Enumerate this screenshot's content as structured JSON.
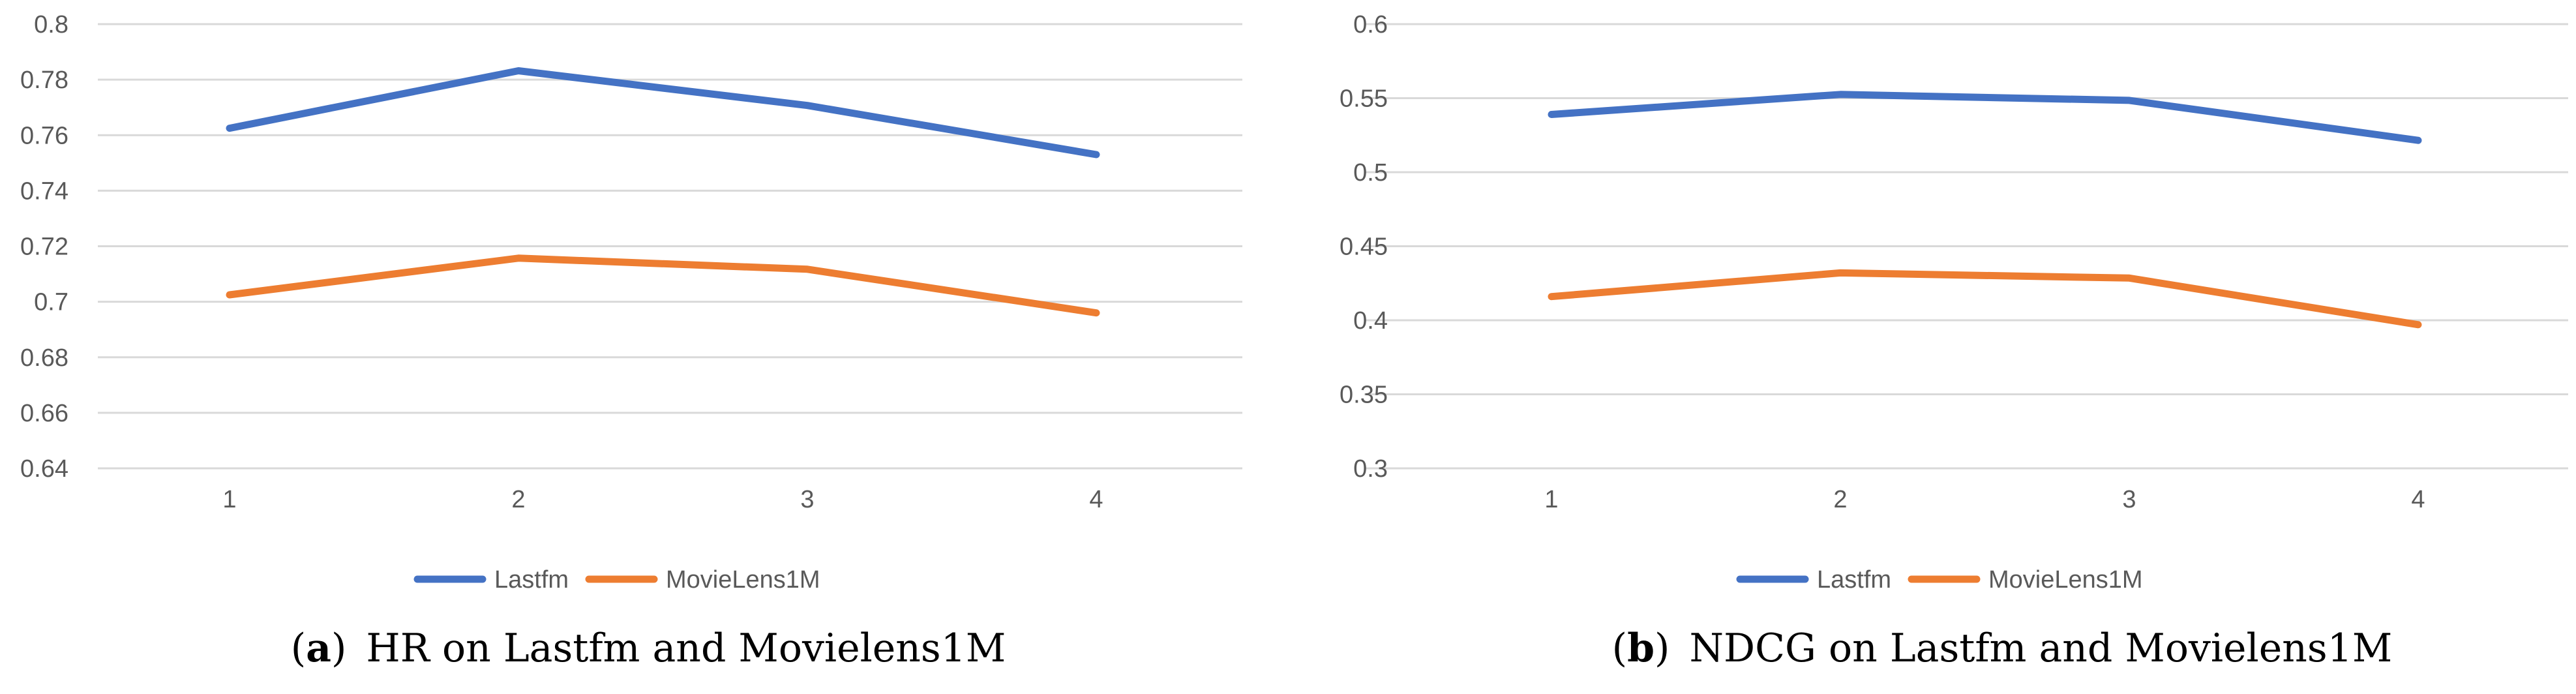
{
  "chart_data": [
    {
      "type": "line",
      "panel_label": "a",
      "caption": "HR on Lastfm and Movielens1M",
      "categories": [
        "1",
        "2",
        "3",
        "4"
      ],
      "y_ticks": [
        "0.8",
        "0.78",
        "0.76",
        "0.74",
        "0.72",
        "0.7",
        "0.68",
        "0.66",
        "0.64"
      ],
      "ylim": [
        0.64,
        0.8
      ],
      "grid": true,
      "legend_position": "bottom-center",
      "series": [
        {
          "name": "Lastfm",
          "color": "#4472c4",
          "values": [
            0.7625,
            0.7832,
            0.7707,
            0.753
          ]
        },
        {
          "name": "MovieLens1M",
          "color": "#ed7d31",
          "values": [
            0.7025,
            0.7157,
            0.7117,
            0.696
          ]
        }
      ]
    },
    {
      "type": "line",
      "panel_label": "b",
      "caption": "NDCG on Lastfm and Movielens1M",
      "categories": [
        "1",
        "2",
        "3",
        "4"
      ],
      "y_ticks": [
        "0.6",
        "0.55",
        "0.5",
        "0.45",
        "0.4",
        "0.35",
        "0.3"
      ],
      "ylim": [
        0.3,
        0.6
      ],
      "grid": true,
      "legend_position": "bottom-center",
      "series": [
        {
          "name": "Lastfm",
          "color": "#4472c4",
          "values": [
            0.539,
            0.5525,
            0.5485,
            0.5215
          ]
        },
        {
          "name": "MovieLens1M",
          "color": "#ed7d31",
          "values": [
            0.416,
            0.432,
            0.4285,
            0.397
          ]
        }
      ]
    }
  ]
}
